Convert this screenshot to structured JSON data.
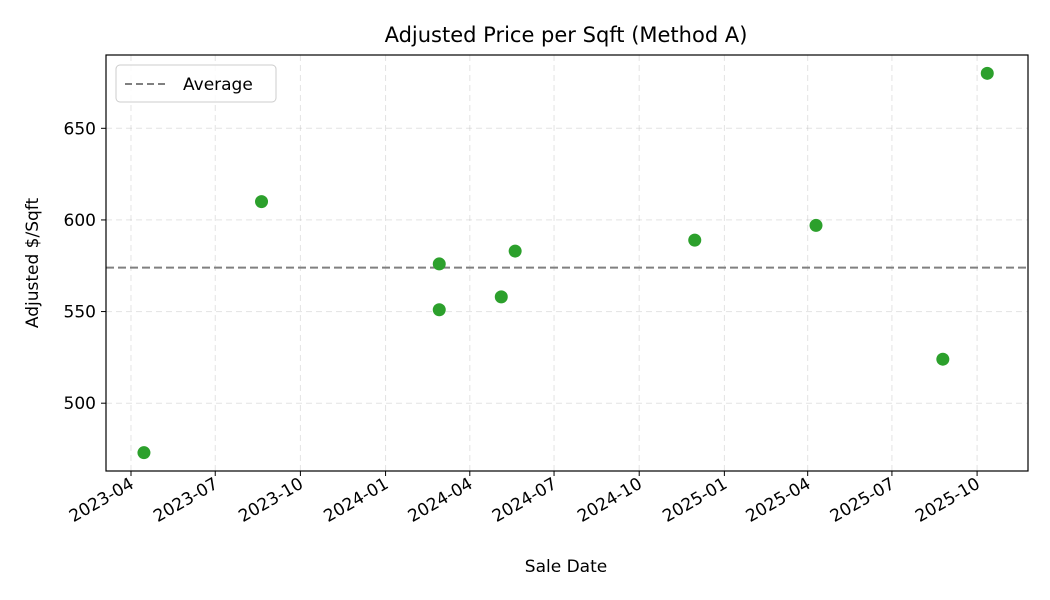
{
  "chart_data": {
    "type": "scatter",
    "title": "Adjusted Price per Sqft (Method A)",
    "xlabel": "Sale Date",
    "ylabel": "Adjusted $/Sqft",
    "x_type": "date",
    "xlim": [
      "2023-03-05",
      "2025-11-25"
    ],
    "ylim": [
      463,
      690
    ],
    "x_ticks": [
      "2023-04-01",
      "2023-07-01",
      "2023-10-01",
      "2024-01-01",
      "2024-04-01",
      "2024-07-01",
      "2024-10-01",
      "2025-01-01",
      "2025-04-01",
      "2025-07-01",
      "2025-10-01"
    ],
    "x_tick_labels": [
      "2023-04",
      "2023-07",
      "2023-10",
      "2024-01",
      "2024-04",
      "2024-07",
      "2024-10",
      "2025-01",
      "2025-04",
      "2025-07",
      "2025-10"
    ],
    "y_ticks": [
      500,
      550,
      600,
      650
    ],
    "grid": true,
    "legend": {
      "position": "top-left",
      "entries": [
        "Average"
      ]
    },
    "average": {
      "label": "Average",
      "value": 574,
      "color": "#808080",
      "style": "dashed"
    },
    "series": [
      {
        "color": "#2ca02c",
        "points": [
          {
            "x": "2023-04-15",
            "y": 473
          },
          {
            "x": "2023-08-20",
            "y": 610
          },
          {
            "x": "2024-02-28",
            "y": 576
          },
          {
            "x": "2024-02-28",
            "y": 551
          },
          {
            "x": "2024-05-05",
            "y": 558
          },
          {
            "x": "2024-05-20",
            "y": 583
          },
          {
            "x": "2024-11-30",
            "y": 589
          },
          {
            "x": "2025-04-10",
            "y": 597
          },
          {
            "x": "2025-08-25",
            "y": 524
          },
          {
            "x": "2025-10-12",
            "y": 680
          }
        ]
      }
    ]
  }
}
